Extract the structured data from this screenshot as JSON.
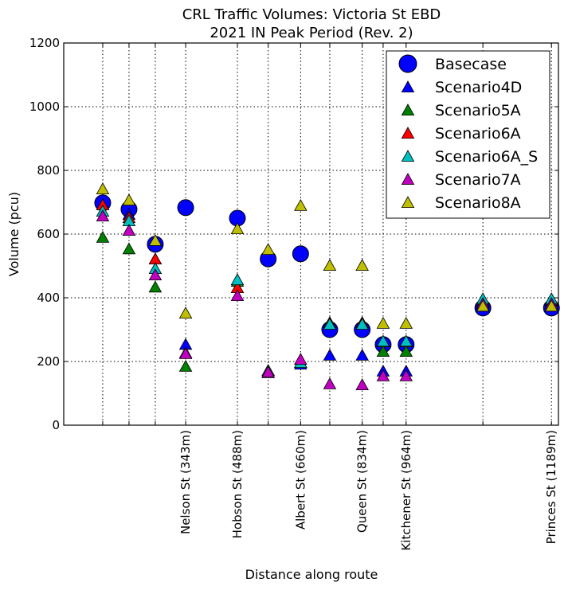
{
  "chart_data": {
    "type": "scatter",
    "title_line1": "CRL Traffic Volumes: Victoria St EBD",
    "title_line2": "2021 IN Peak Period (Rev. 2)",
    "xlabel": "Distance along route",
    "ylabel": "Volume (pcu)",
    "ylim": [
      0,
      1200
    ],
    "xlim": [
      0,
      1205
    ],
    "yticks": [
      0,
      200,
      400,
      600,
      800,
      1000,
      1200
    ],
    "x_positions": [
      95,
      159,
      223,
      297,
      423,
      498,
      577,
      648,
      727,
      778,
      834,
      1021,
      1188
    ],
    "x_tick_labels": [
      {
        "x": 297,
        "label": "Nelson St (343m)"
      },
      {
        "x": 423,
        "label": "Hobson St (488m)"
      },
      {
        "x": 577,
        "label": "Albert St (660m)"
      },
      {
        "x": 727,
        "label": "Queen St (834m)"
      },
      {
        "x": 834,
        "label": "Kitchener St (964m)"
      },
      {
        "x": 1188,
        "label": "Princes St (1189m)"
      }
    ],
    "series": [
      {
        "name": "Basecase",
        "marker": "circle",
        "color": "#0000ff",
        "values": [
          698,
          678,
          568,
          683,
          650,
          522,
          538,
          300,
          300,
          253,
          253,
          368,
          368
        ]
      },
      {
        "name": "Scenario4D",
        "marker": "triangle",
        "color": "#0000ff",
        "values": [
          690,
          660,
          520,
          252,
          430,
          163,
          190,
          218,
          218,
          168,
          168,
          385,
          385
        ]
      },
      {
        "name": "Scenario5A",
        "marker": "triangle",
        "color": "#008000",
        "values": [
          588,
          552,
          432,
          183,
          450,
          170,
          195,
          320,
          320,
          230,
          230,
          390,
          390
        ]
      },
      {
        "name": "Scenario6A",
        "marker": "triangle",
        "color": "#ff0000",
        "values": [
          690,
          650,
          520,
          225,
          430,
          165,
          195,
          320,
          320,
          260,
          260,
          385,
          385
        ]
      },
      {
        "name": "Scenario6A_S",
        "marker": "triangle",
        "color": "#00bfbf",
        "values": [
          670,
          640,
          490,
          225,
          455,
          170,
          195,
          315,
          315,
          262,
          262,
          395,
          395
        ]
      },
      {
        "name": "Scenario7A",
        "marker": "triangle",
        "color": "#bf00bf",
        "values": [
          655,
          610,
          470,
          223,
          405,
          165,
          205,
          128,
          125,
          153,
          153,
          380,
          380
        ]
      },
      {
        "name": "Scenario8A",
        "marker": "triangle",
        "color": "#bfbf00",
        "values": [
          740,
          705,
          578,
          350,
          615,
          550,
          688,
          500,
          500,
          318,
          318,
          372,
          372
        ]
      }
    ],
    "grid": true,
    "legend_position": "top-right"
  }
}
